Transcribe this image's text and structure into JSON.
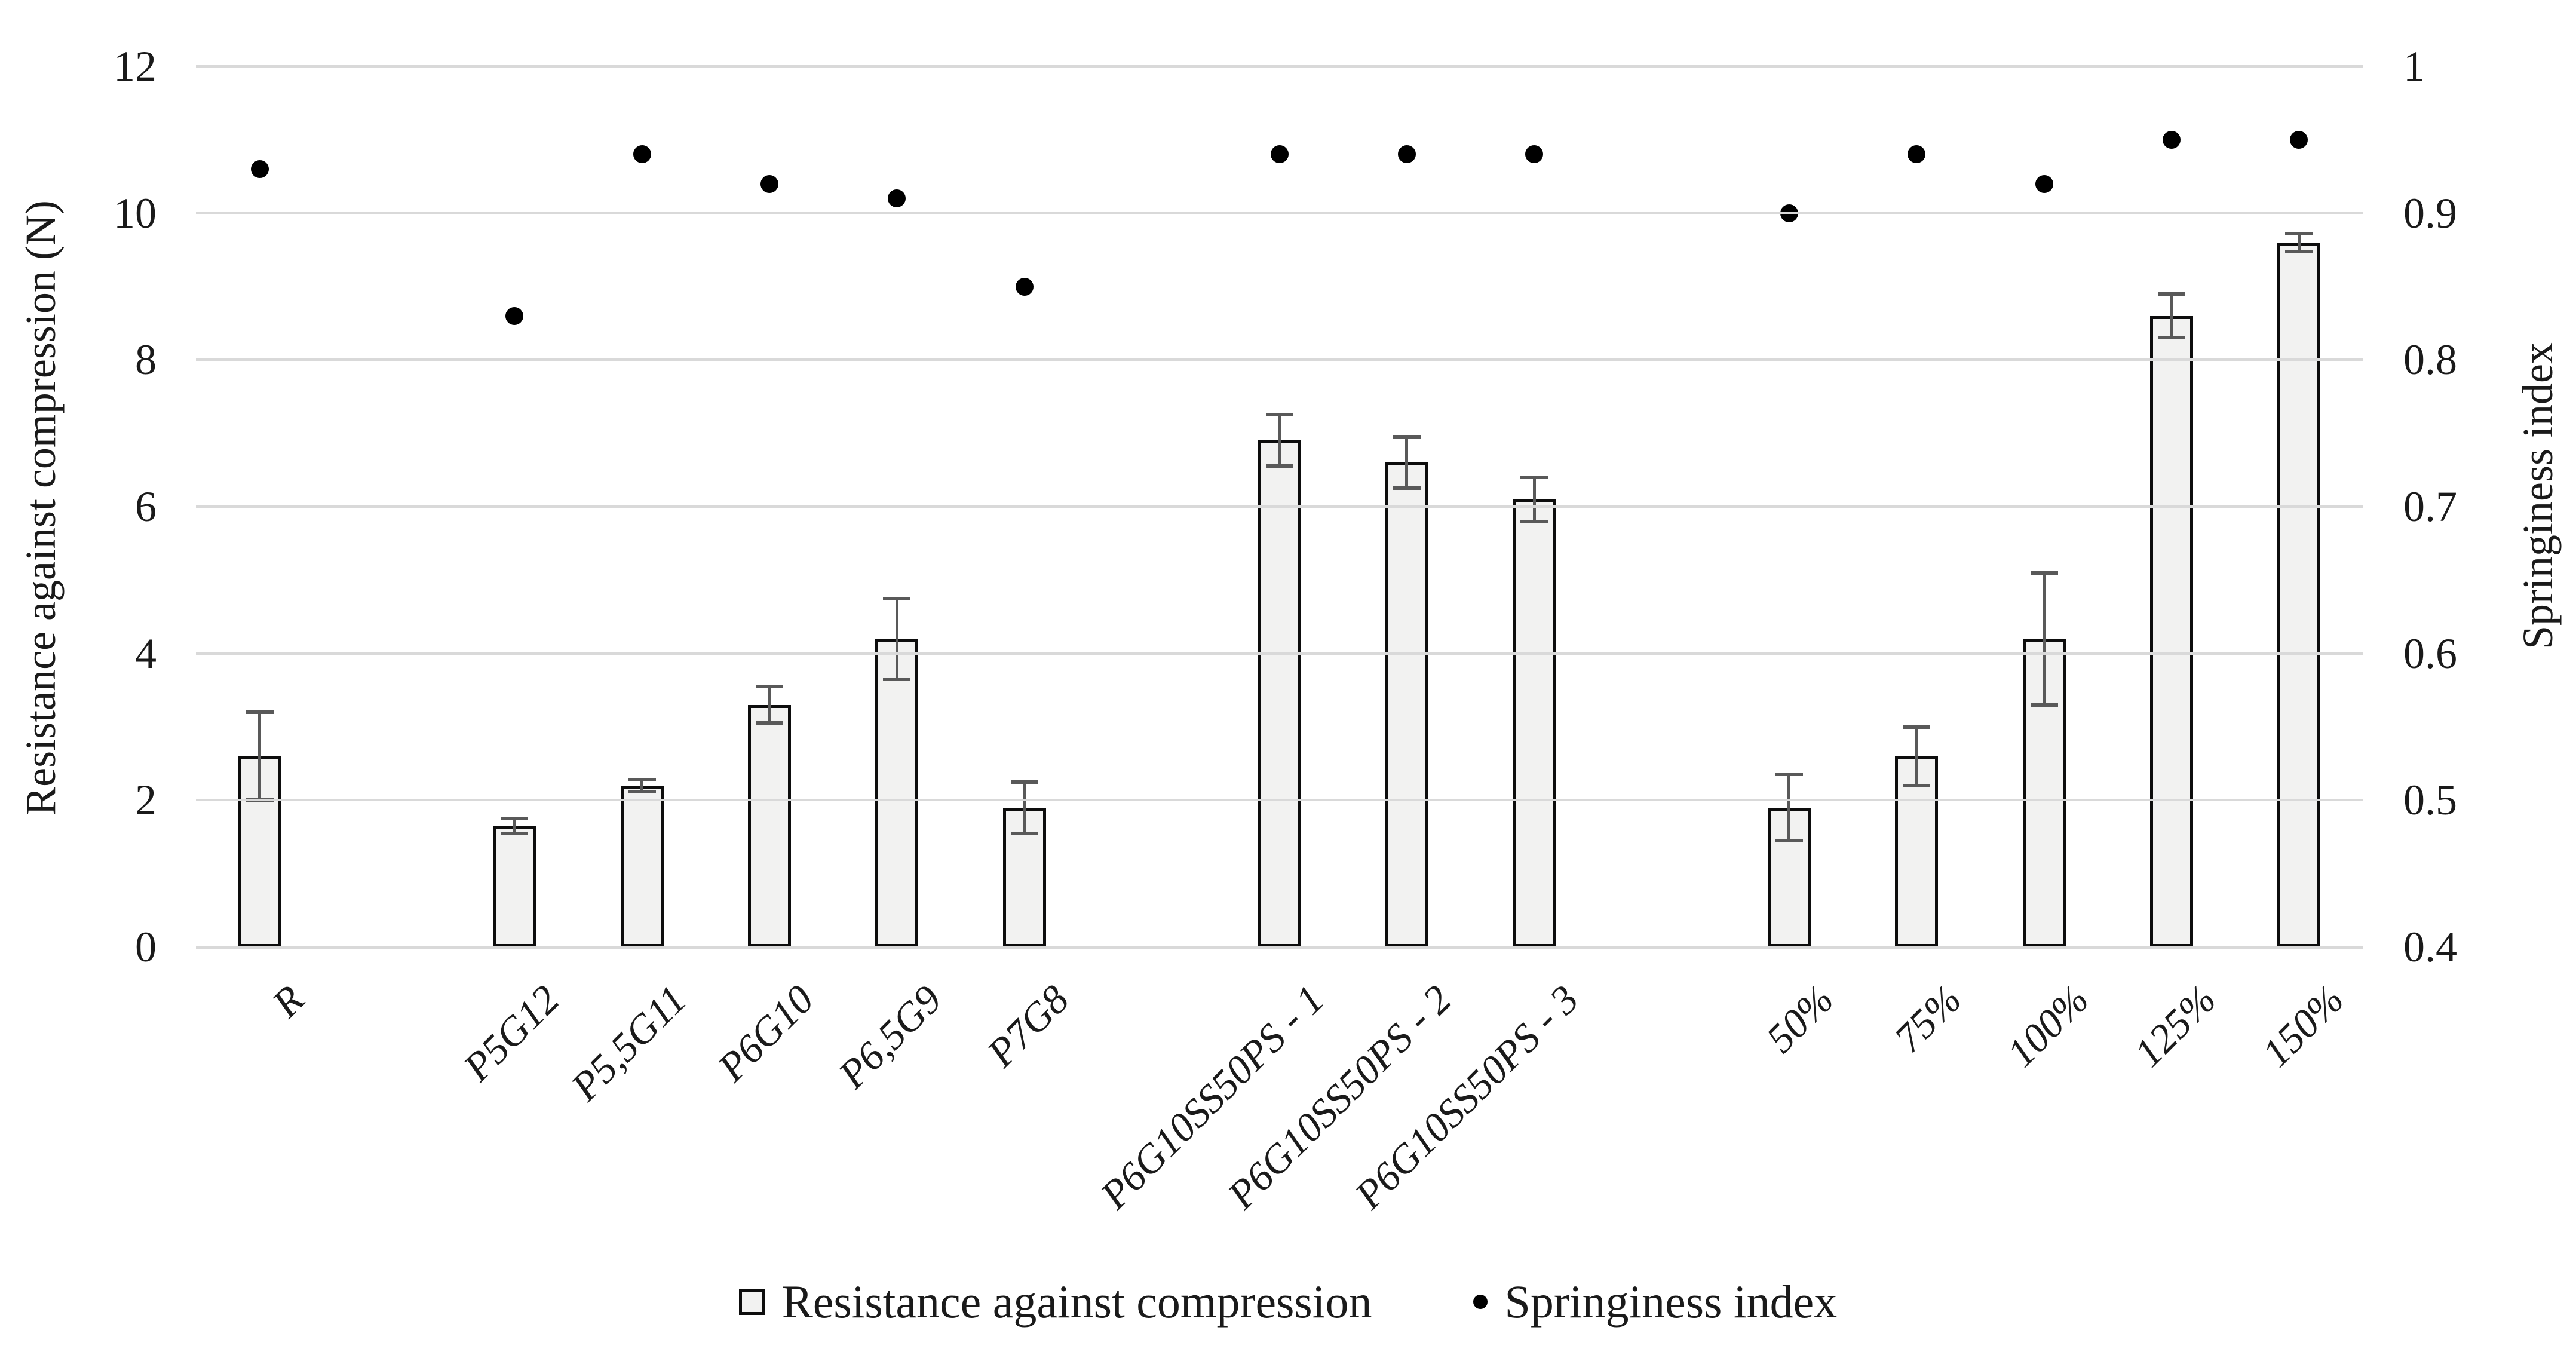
{
  "chart_data": {
    "type": "bar",
    "subtype": "combo-bar-scatter",
    "categories": [
      "R",
      "P5G12",
      "P5,5G11",
      "P6G10",
      "P6,5G9",
      "P7G8",
      "P6G10SS50PS - 1",
      "P6G10SS50PS - 2",
      "P6G10SS50PS - 3",
      "50%",
      "75%",
      "100%",
      "125%",
      "150%"
    ],
    "slots": [
      0,
      2,
      3,
      4,
      5,
      6,
      8,
      9,
      10,
      12,
      13,
      14,
      15,
      16
    ],
    "total_slots": 17,
    "series": [
      {
        "name": "Resistance against compression",
        "type": "bar",
        "axis": "left",
        "values": [
          2.6,
          1.65,
          2.2,
          3.3,
          4.2,
          1.9,
          6.9,
          6.6,
          6.1,
          1.9,
          2.6,
          4.2,
          8.6,
          9.6
        ],
        "errors": [
          0.6,
          0.1,
          0.08,
          0.25,
          0.55,
          0.35,
          0.35,
          0.35,
          0.3,
          0.45,
          0.4,
          0.9,
          0.3,
          0.12
        ]
      },
      {
        "name": "Springiness index",
        "type": "scatter",
        "axis": "right",
        "values": [
          0.93,
          0.83,
          0.94,
          0.92,
          0.91,
          0.85,
          0.94,
          0.94,
          0.94,
          0.9,
          0.94,
          0.92,
          0.95,
          0.95
        ]
      }
    ],
    "left_axis": {
      "label": "Resistance against compression (N)",
      "min": 0,
      "max": 12,
      "tick_labels": [
        "0",
        "2",
        "4",
        "6",
        "8",
        "10",
        "12"
      ],
      "tick_values": [
        0,
        2,
        4,
        6,
        8,
        10,
        12
      ]
    },
    "right_axis": {
      "label": "Springiness index",
      "min": 0.4,
      "max": 1,
      "tick_labels": [
        "0.4",
        "0.5",
        "0.6",
        "0.7",
        "0.8",
        "0.9",
        "1"
      ],
      "tick_values": [
        0.4,
        0.5,
        0.6,
        0.7,
        0.8,
        0.9,
        1
      ]
    },
    "legend": [
      {
        "label": "Resistance against compression",
        "marker": "square"
      },
      {
        "label": "Springiness index",
        "marker": "dot"
      }
    ],
    "grid": true,
    "legend_position": "bottom",
    "colors": {
      "bar_fill": "#f2f2f1",
      "bar_border": "#0d0d0d",
      "error_bar": "#595959",
      "gridline": "#d9d9d9",
      "dot": "#000000",
      "text": "#1a1a1a"
    }
  }
}
